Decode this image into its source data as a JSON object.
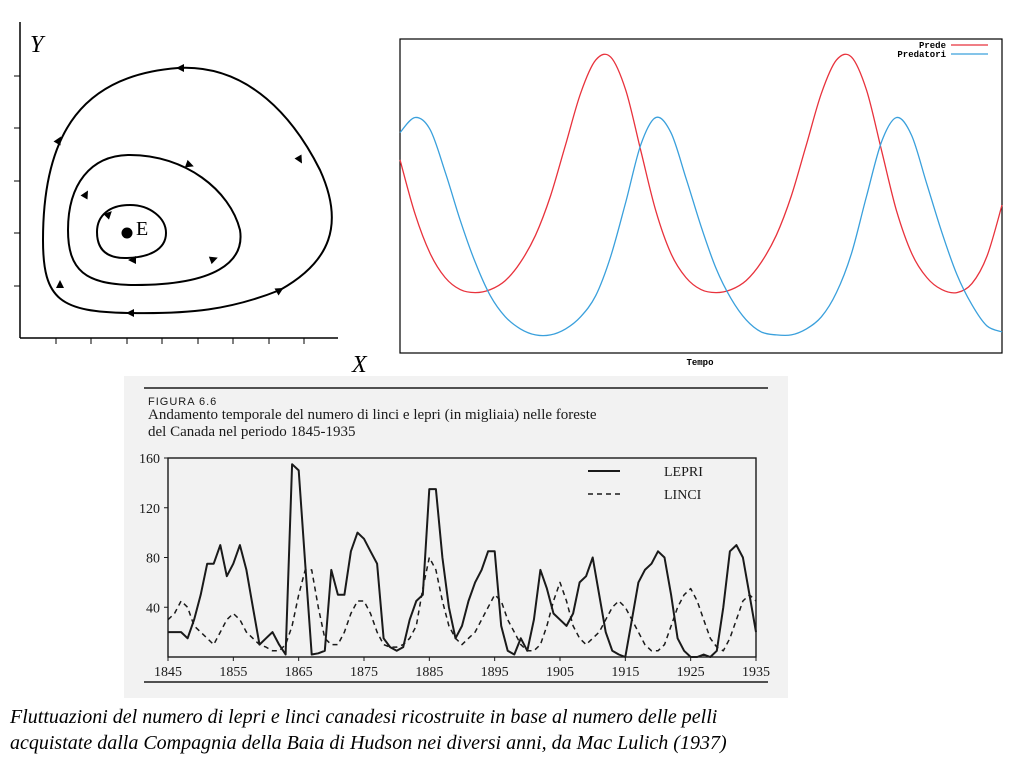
{
  "phase_plot": {
    "y_label": "Y",
    "x_label": "X",
    "equilibrium_label": "E"
  },
  "colors": {
    "prey": "#e8323c",
    "predators": "#3aa0dc",
    "ink": "#000000",
    "scan_bg": "#f2f2f2",
    "scan_ink": "#1a1a1a"
  },
  "figure": {
    "number": "FIGURA 6.6",
    "title_line1": "Andamento temporale del numero di linci e lepri (in migliaia) nelle foreste",
    "title_line2": "del Canada nel periodo 1845-1935"
  },
  "caption": {
    "line1": "Fluttuazioni del numero di lepri e linci canadesi ricostruite in base al numero delle pelli",
    "line2": "acquistate dalla Compagnia della Baia di Hudson nei diversi anni, da Mac Lulich (1937)"
  },
  "chart_data": [
    {
      "type": "line",
      "title": "",
      "xlabel": "Tempo",
      "ylabel": "",
      "grid": false,
      "legend": "top-right",
      "x": [
        0,
        1,
        2,
        3,
        4,
        5,
        6,
        7,
        8,
        9,
        10,
        11,
        12,
        13,
        14,
        15,
        16,
        17,
        18,
        19,
        20,
        21,
        22,
        23,
        24,
        25,
        26,
        27,
        28,
        29,
        30,
        31,
        32,
        33,
        34,
        35,
        36,
        37,
        38,
        39,
        40
      ],
      "series": [
        {
          "name": "Prede",
          "color": "#e8323c",
          "values": [
            0.62,
            0.44,
            0.31,
            0.23,
            0.19,
            0.18,
            0.19,
            0.22,
            0.28,
            0.37,
            0.5,
            0.67,
            0.84,
            0.95,
            0.96,
            0.85,
            0.65,
            0.45,
            0.31,
            0.23,
            0.19,
            0.18,
            0.19,
            0.22,
            0.28,
            0.37,
            0.5,
            0.67,
            0.84,
            0.95,
            0.96,
            0.85,
            0.65,
            0.45,
            0.31,
            0.23,
            0.19,
            0.18,
            0.21,
            0.3,
            0.47
          ]
        },
        {
          "name": "Predatori",
          "color": "#3aa0dc",
          "values": [
            0.71,
            0.76,
            0.72,
            0.58,
            0.42,
            0.28,
            0.17,
            0.1,
            0.06,
            0.04,
            0.04,
            0.06,
            0.1,
            0.17,
            0.3,
            0.48,
            0.67,
            0.76,
            0.71,
            0.56,
            0.4,
            0.26,
            0.16,
            0.09,
            0.05,
            0.04,
            0.04,
            0.06,
            0.1,
            0.18,
            0.31,
            0.5,
            0.68,
            0.76,
            0.7,
            0.54,
            0.38,
            0.24,
            0.14,
            0.07,
            0.05
          ]
        }
      ]
    },
    {
      "type": "line",
      "title": "Andamento temporale del numero di linci e lepri (in migliaia) nelle foreste del Canada nel periodo 1845-1935",
      "xlabel": "",
      "ylabel": "",
      "grid": false,
      "legend": "top-right",
      "xlim": [
        1845,
        1935
      ],
      "ylim": [
        0,
        160
      ],
      "xticks": [
        "1845",
        "1855",
        "1865",
        "1875",
        "1885",
        "1895",
        "1905",
        "1915",
        "1925",
        "1935"
      ],
      "yticks": [
        "40",
        "80",
        "120",
        "160"
      ],
      "x": [
        1845,
        1846,
        1847,
        1848,
        1849,
        1850,
        1851,
        1852,
        1853,
        1854,
        1855,
        1856,
        1857,
        1858,
        1859,
        1860,
        1861,
        1862,
        1863,
        1864,
        1865,
        1866,
        1867,
        1868,
        1869,
        1870,
        1871,
        1872,
        1873,
        1874,
        1875,
        1876,
        1877,
        1878,
        1879,
        1880,
        1881,
        1882,
        1883,
        1884,
        1885,
        1886,
        1887,
        1888,
        1889,
        1890,
        1891,
        1892,
        1893,
        1894,
        1895,
        1896,
        1897,
        1898,
        1899,
        1900,
        1901,
        1902,
        1903,
        1904,
        1905,
        1906,
        1907,
        1908,
        1909,
        1910,
        1911,
        1912,
        1913,
        1914,
        1915,
        1916,
        1917,
        1918,
        1919,
        1920,
        1921,
        1922,
        1923,
        1924,
        1925,
        1926,
        1927,
        1928,
        1929,
        1930,
        1931,
        1932,
        1933,
        1934,
        1935
      ],
      "series": [
        {
          "name": "LEPRI",
          "style": "solid",
          "values": [
            20,
            20,
            20,
            15,
            30,
            50,
            75,
            75,
            90,
            65,
            75,
            90,
            70,
            40,
            10,
            15,
            20,
            10,
            2,
            155,
            150,
            75,
            2,
            3,
            5,
            70,
            50,
            50,
            85,
            100,
            95,
            85,
            75,
            15,
            8,
            5,
            8,
            30,
            45,
            50,
            135,
            135,
            80,
            40,
            15,
            25,
            45,
            60,
            70,
            85,
            85,
            25,
            5,
            2,
            15,
            5,
            30,
            70,
            55,
            35,
            30,
            25,
            35,
            60,
            65,
            80,
            50,
            20,
            5,
            2,
            0,
            30,
            60,
            70,
            75,
            85,
            80,
            50,
            15,
            5,
            0,
            0,
            2,
            0,
            5,
            40,
            85,
            90,
            80,
            50,
            20
          ]
        },
        {
          "name": "LINCI",
          "style": "dashed",
          "values": [
            30,
            35,
            45,
            40,
            25,
            20,
            15,
            10,
            20,
            30,
            35,
            30,
            20,
            15,
            10,
            8,
            5,
            5,
            10,
            25,
            50,
            70,
            70,
            40,
            15,
            10,
            10,
            20,
            35,
            45,
            45,
            35,
            20,
            10,
            8,
            8,
            10,
            15,
            25,
            55,
            80,
            70,
            45,
            25,
            15,
            10,
            15,
            20,
            30,
            40,
            50,
            45,
            30,
            20,
            10,
            5,
            5,
            10,
            25,
            45,
            60,
            45,
            25,
            15,
            10,
            15,
            20,
            30,
            40,
            45,
            40,
            30,
            20,
            10,
            5,
            5,
            10,
            25,
            40,
            50,
            55,
            45,
            30,
            15,
            8,
            5,
            15,
            30,
            45,
            50,
            45
          ]
        }
      ]
    }
  ]
}
